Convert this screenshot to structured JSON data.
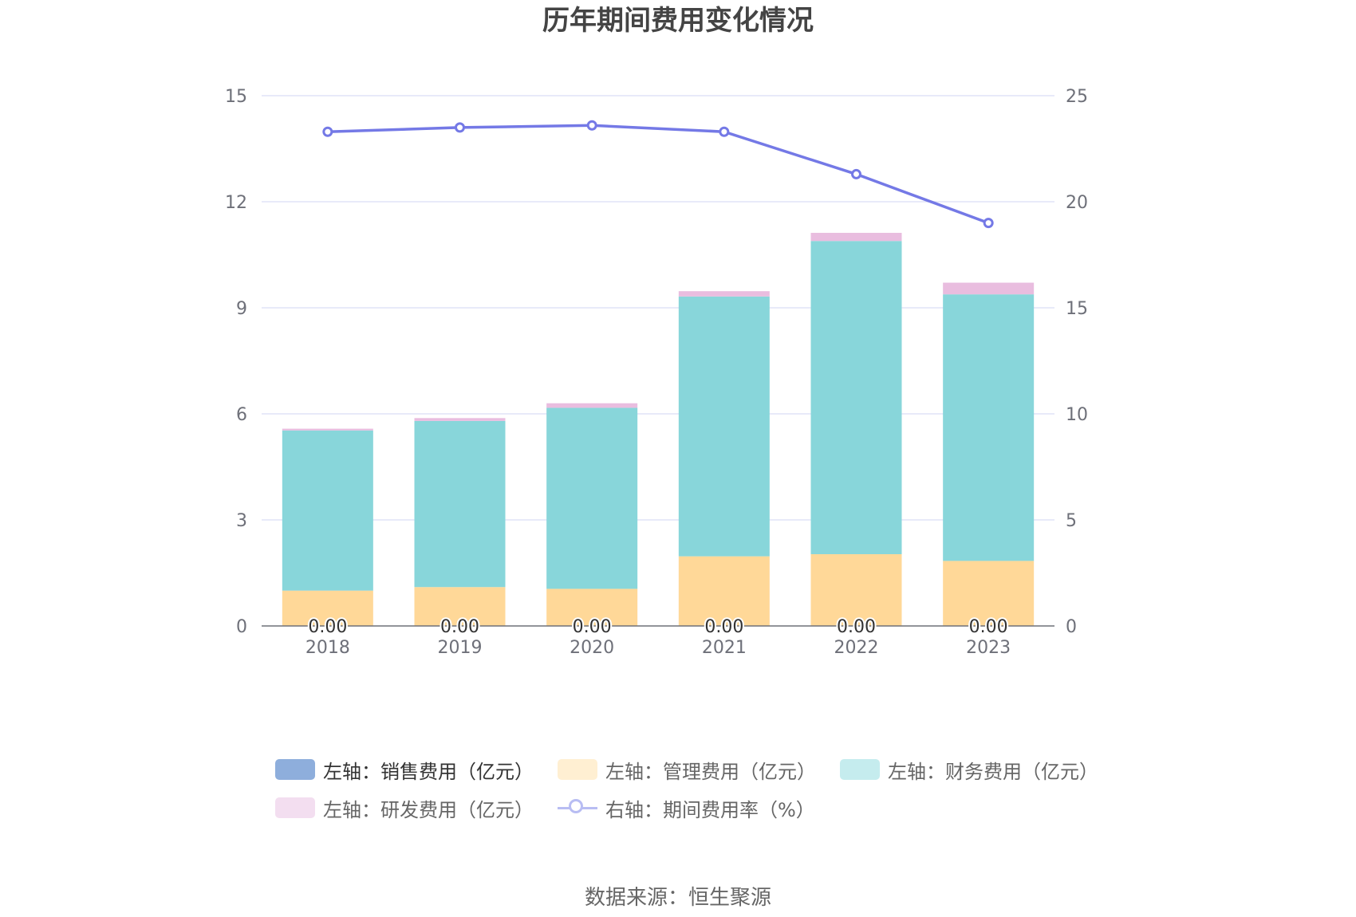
{
  "chart_data": {
    "type": "bar",
    "title": "历年期间费用变化情况",
    "categories": [
      "2018",
      "2019",
      "2020",
      "2021",
      "2022",
      "2023"
    ],
    "stacked": true,
    "y_left": {
      "ylim": [
        0,
        15
      ],
      "ticks": [
        "0",
        "3",
        "6",
        "9",
        "12",
        "15"
      ]
    },
    "y_right": {
      "ylim": [
        0,
        25
      ],
      "ticks": [
        "0",
        "5",
        "10",
        "15",
        "20",
        "25"
      ]
    },
    "series": [
      {
        "name": "左轴：销售费用（亿元）",
        "axis": "left",
        "type": "bar",
        "color": "#8eaedc",
        "values": [
          0.0,
          0.0,
          0.0,
          0.0,
          0.0,
          0.0
        ],
        "labels": [
          "0.00",
          "0.00",
          "0.00",
          "0.00",
          "0.00",
          "0.00"
        ]
      },
      {
        "name": "左轴：管理费用（亿元）",
        "axis": "left",
        "type": "bar",
        "color": "#ffd898",
        "values": [
          1.0,
          1.1,
          1.05,
          1.97,
          2.03,
          1.84
        ]
      },
      {
        "name": "左轴：财务费用（亿元）",
        "axis": "left",
        "type": "bar",
        "color": "#88d6da",
        "values": [
          4.53,
          4.7,
          5.12,
          7.35,
          8.86,
          7.54
        ]
      },
      {
        "name": "左轴：研发费用（亿元）",
        "axis": "left",
        "type": "bar",
        "color": "#e9bddf",
        "values": [
          0.05,
          0.08,
          0.13,
          0.15,
          0.23,
          0.33
        ]
      },
      {
        "name": "右轴：期间费用率（%）",
        "axis": "right",
        "type": "line",
        "color": "#7479e6",
        "values": [
          23.3,
          23.5,
          23.6,
          23.3,
          21.3,
          19.0
        ]
      }
    ],
    "legend_position": "bottom",
    "grid": true,
    "source": "数据来源：恒生聚源"
  }
}
